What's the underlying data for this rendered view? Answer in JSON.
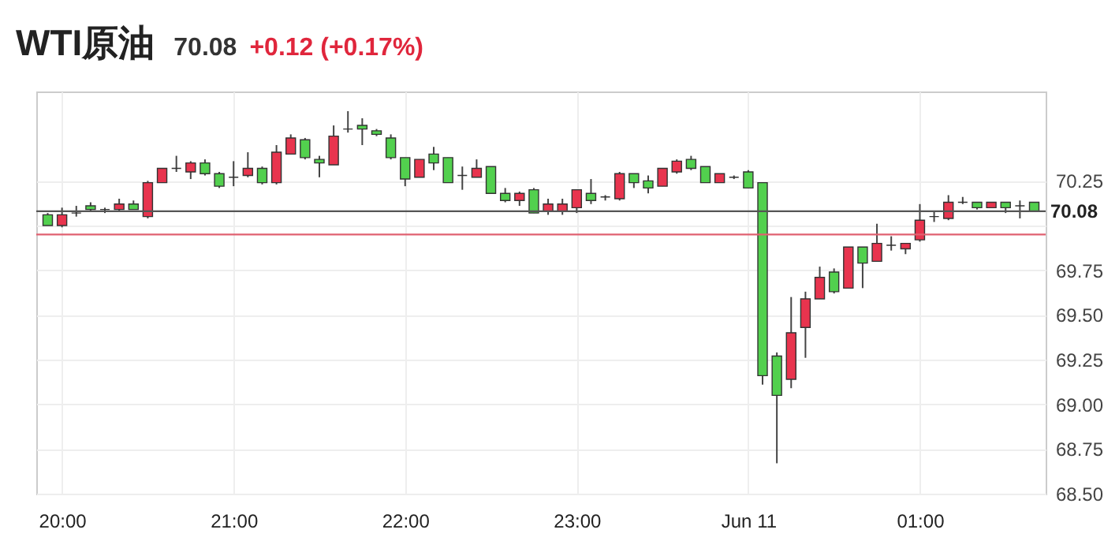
{
  "chart_data": {
    "type": "candlestick",
    "title": "WTI原油",
    "annotations": [
      "70.08",
      "+0.12 (+0.17%)"
    ],
    "x": [
      "--06-10T19:55",
      "--06-10T20:00",
      "--06-10T20:05",
      "--06-10T20:10",
      "--06-10T20:15",
      "--06-10T20:20",
      "--06-10T20:25",
      "--06-10T20:30",
      "--06-10T20:35",
      "--06-10T20:40",
      "--06-10T20:45",
      "--06-10T20:50",
      "--06-10T20:55",
      "--06-10T21:00",
      "--06-10T21:05",
      "--06-10T21:10",
      "--06-10T21:15",
      "--06-10T21:20",
      "--06-10T21:25",
      "--06-10T21:30",
      "--06-10T21:35",
      "--06-10T21:40",
      "--06-10T21:45",
      "--06-10T21:50",
      "--06-10T21:55",
      "--06-10T22:00",
      "--06-10T22:05",
      "--06-10T22:10",
      "--06-10T22:15",
      "--06-10T22:20",
      "--06-10T22:25",
      "--06-10T22:30",
      "--06-10T22:35",
      "--06-10T22:40",
      "--06-10T22:45",
      "--06-10T22:50",
      "--06-10T22:55",
      "--06-10T23:00",
      "--06-10T23:05",
      "--06-10T23:10",
      "--06-10T23:15",
      "--06-10T23:20",
      "--06-10T23:25",
      "--06-10T23:30",
      "--06-10T23:35",
      "--06-10T23:40",
      "--06-10T23:45",
      "--06-10T23:50",
      "--06-10T23:55",
      "--06-11T00:00",
      "--06-11T00:05",
      "--06-11T00:10",
      "--06-11T00:15",
      "--06-11T00:20",
      "--06-11T00:25",
      "--06-11T00:30",
      "--06-11T00:35",
      "--06-11T00:40",
      "--06-11T00:45",
      "--06-11T00:50",
      "--06-11T00:55",
      "--06-11T01:00",
      "--06-11T01:05",
      "--06-11T01:10",
      "--06-11T01:15",
      "--06-11T01:20",
      "--06-11T01:25",
      "--06-11T01:30",
      "--06-11T01:35",
      "--06-11T01:40"
    ],
    "ohlc": [
      [
        70.06,
        70.07,
        70.0,
        70.0
      ],
      [
        70.0,
        70.1,
        69.99,
        70.06
      ],
      [
        70.07,
        70.11,
        70.05,
        70.07
      ],
      [
        70.11,
        70.13,
        70.08,
        70.09
      ],
      [
        70.09,
        70.1,
        70.07,
        70.09
      ],
      [
        70.09,
        70.15,
        70.08,
        70.12
      ],
      [
        70.12,
        70.14,
        70.09,
        70.09
      ],
      [
        70.05,
        70.25,
        70.04,
        70.24
      ],
      [
        70.24,
        70.32,
        70.24,
        70.32
      ],
      [
        70.32,
        70.39,
        70.3,
        70.32
      ],
      [
        70.3,
        70.36,
        70.26,
        70.35
      ],
      [
        70.35,
        70.37,
        70.28,
        70.29
      ],
      [
        70.29,
        70.3,
        70.21,
        70.22
      ],
      [
        70.27,
        70.36,
        70.22,
        70.27
      ],
      [
        70.28,
        70.41,
        70.27,
        70.32
      ],
      [
        70.32,
        70.33,
        70.23,
        70.24
      ],
      [
        70.24,
        70.45,
        70.23,
        70.41
      ],
      [
        70.4,
        70.51,
        70.4,
        70.49
      ],
      [
        70.48,
        70.49,
        70.37,
        70.38
      ],
      [
        70.37,
        70.39,
        70.27,
        70.35
      ],
      [
        70.34,
        70.56,
        70.34,
        70.5
      ],
      [
        70.54,
        70.64,
        70.52,
        70.54
      ],
      [
        70.56,
        70.6,
        70.45,
        70.54
      ],
      [
        70.53,
        70.54,
        70.5,
        70.51
      ],
      [
        70.49,
        70.51,
        70.37,
        70.38
      ],
      [
        70.38,
        70.38,
        70.22,
        70.26
      ],
      [
        70.27,
        70.37,
        70.27,
        70.37
      ],
      [
        70.4,
        70.44,
        70.31,
        70.35
      ],
      [
        70.38,
        70.38,
        70.24,
        70.24
      ],
      [
        70.28,
        70.33,
        70.2,
        70.28
      ],
      [
        70.27,
        70.37,
        70.27,
        70.32
      ],
      [
        70.33,
        70.33,
        70.18,
        70.18
      ],
      [
        70.18,
        70.21,
        70.13,
        70.14
      ],
      [
        70.14,
        70.19,
        70.11,
        70.18
      ],
      [
        70.2,
        70.21,
        70.07,
        70.07
      ],
      [
        70.08,
        70.15,
        70.06,
        70.12
      ],
      [
        70.08,
        70.15,
        70.06,
        70.12
      ],
      [
        70.1,
        70.2,
        70.07,
        70.2
      ],
      [
        70.18,
        70.26,
        70.12,
        70.14
      ],
      [
        70.16,
        70.17,
        70.14,
        70.16
      ],
      [
        70.15,
        70.3,
        70.14,
        70.29
      ],
      [
        70.29,
        70.29,
        70.21,
        70.24
      ],
      [
        70.25,
        70.28,
        70.18,
        70.21
      ],
      [
        70.22,
        70.32,
        70.22,
        70.32
      ],
      [
        70.3,
        70.37,
        70.29,
        70.36
      ],
      [
        70.37,
        70.39,
        70.31,
        70.32
      ],
      [
        70.33,
        70.33,
        70.24,
        70.24
      ],
      [
        70.24,
        70.29,
        70.24,
        70.29
      ],
      [
        70.27,
        70.28,
        70.26,
        70.27
      ],
      [
        70.3,
        70.31,
        70.21,
        70.21
      ],
      [
        70.24,
        70.24,
        69.11,
        69.16
      ],
      [
        69.27,
        69.29,
        68.67,
        69.05
      ],
      [
        69.14,
        69.6,
        69.09,
        69.4
      ],
      [
        69.43,
        69.63,
        69.26,
        69.59
      ],
      [
        69.59,
        69.77,
        69.59,
        69.71
      ],
      [
        69.74,
        69.76,
        69.62,
        69.63
      ],
      [
        69.65,
        69.88,
        69.65,
        69.88
      ],
      [
        69.88,
        69.88,
        69.65,
        69.79
      ],
      [
        69.8,
        70.01,
        69.8,
        69.9
      ],
      [
        69.89,
        69.94,
        69.86,
        69.89
      ],
      [
        69.87,
        69.9,
        69.84,
        69.9
      ],
      [
        69.92,
        70.12,
        69.91,
        70.03
      ],
      [
        70.05,
        70.08,
        70.02,
        70.05
      ],
      [
        70.04,
        70.17,
        70.03,
        70.13
      ],
      [
        70.13,
        70.16,
        70.12,
        70.13
      ],
      [
        70.13,
        70.13,
        70.09,
        70.1
      ],
      [
        70.1,
        70.13,
        70.1,
        70.13
      ],
      [
        70.13,
        70.13,
        70.07,
        70.1
      ],
      [
        70.11,
        70.14,
        70.04,
        70.11
      ],
      [
        70.13,
        70.13,
        70.08,
        70.08
      ]
    ],
    "colors": [
      "#52d04e",
      "#e8344e",
      "#333333",
      "#52d04e",
      "#333333",
      "#e8344e",
      "#52d04e",
      "#e8344e",
      "#e8344e",
      "#333333",
      "#e8344e",
      "#52d04e",
      "#52d04e",
      "#333333",
      "#e8344e",
      "#52d04e",
      "#e8344e",
      "#e8344e",
      "#52d04e",
      "#52d04e",
      "#e8344e",
      "#333333",
      "#52d04e",
      "#52d04e",
      "#52d04e",
      "#52d04e",
      "#e8344e",
      "#52d04e",
      "#52d04e",
      "#333333",
      "#e8344e",
      "#52d04e",
      "#52d04e",
      "#e8344e",
      "#52d04e",
      "#e8344e",
      "#e8344e",
      "#e8344e",
      "#52d04e",
      "#333333",
      "#e8344e",
      "#52d04e",
      "#52d04e",
      "#e8344e",
      "#e8344e",
      "#52d04e",
      "#52d04e",
      "#e8344e",
      "#333333",
      "#52d04e",
      "#52d04e",
      "#52d04e",
      "#e8344e",
      "#e8344e",
      "#e8344e",
      "#52d04e",
      "#e8344e",
      "#52d04e",
      "#e8344e",
      "#333333",
      "#e8344e",
      "#e8344e",
      "#333333",
      "#e8344e",
      "#333333",
      "#52d04e",
      "#e8344e",
      "#52d04e",
      "#333333",
      "#52d04e"
    ],
    "xlim": [
      "--06-10T19:51",
      "--06-11T01:44"
    ],
    "xticks": [
      {
        "value": "--06-10T20:00",
        "label": "20:00"
      },
      {
        "value": "--06-10T21:00",
        "label": "21:00"
      },
      {
        "value": "--06-10T22:00",
        "label": "22:00"
      },
      {
        "value": "--06-10T23:00",
        "label": "23:00"
      },
      {
        "value": "--06-11T00:00",
        "label": "Jun 11"
      },
      {
        "value": "--06-11T01:00",
        "label": "01:00"
      }
    ],
    "ylim": [
      68.5,
      70.75
    ],
    "yticks": [
      {
        "value": 68.5,
        "label": "68.50"
      },
      {
        "value": 68.75,
        "label": "68.75"
      },
      {
        "value": 69,
        "label": "69.00"
      },
      {
        "value": 69.25,
        "label": "69.25"
      },
      {
        "value": 69.5,
        "label": "69.50"
      },
      {
        "value": 69.75,
        "label": "69.75"
      },
      {
        "value": 70,
        "label": null
      },
      {
        "value": 70.25,
        "label": "70.25"
      }
    ],
    "ref_lines": [
      {
        "axis": "y",
        "value": 70.08,
        "label": "70.08",
        "color": "#555555"
      },
      {
        "axis": "y",
        "value": 69.95,
        "color": "#e06070"
      }
    ],
    "grid": true
  }
}
